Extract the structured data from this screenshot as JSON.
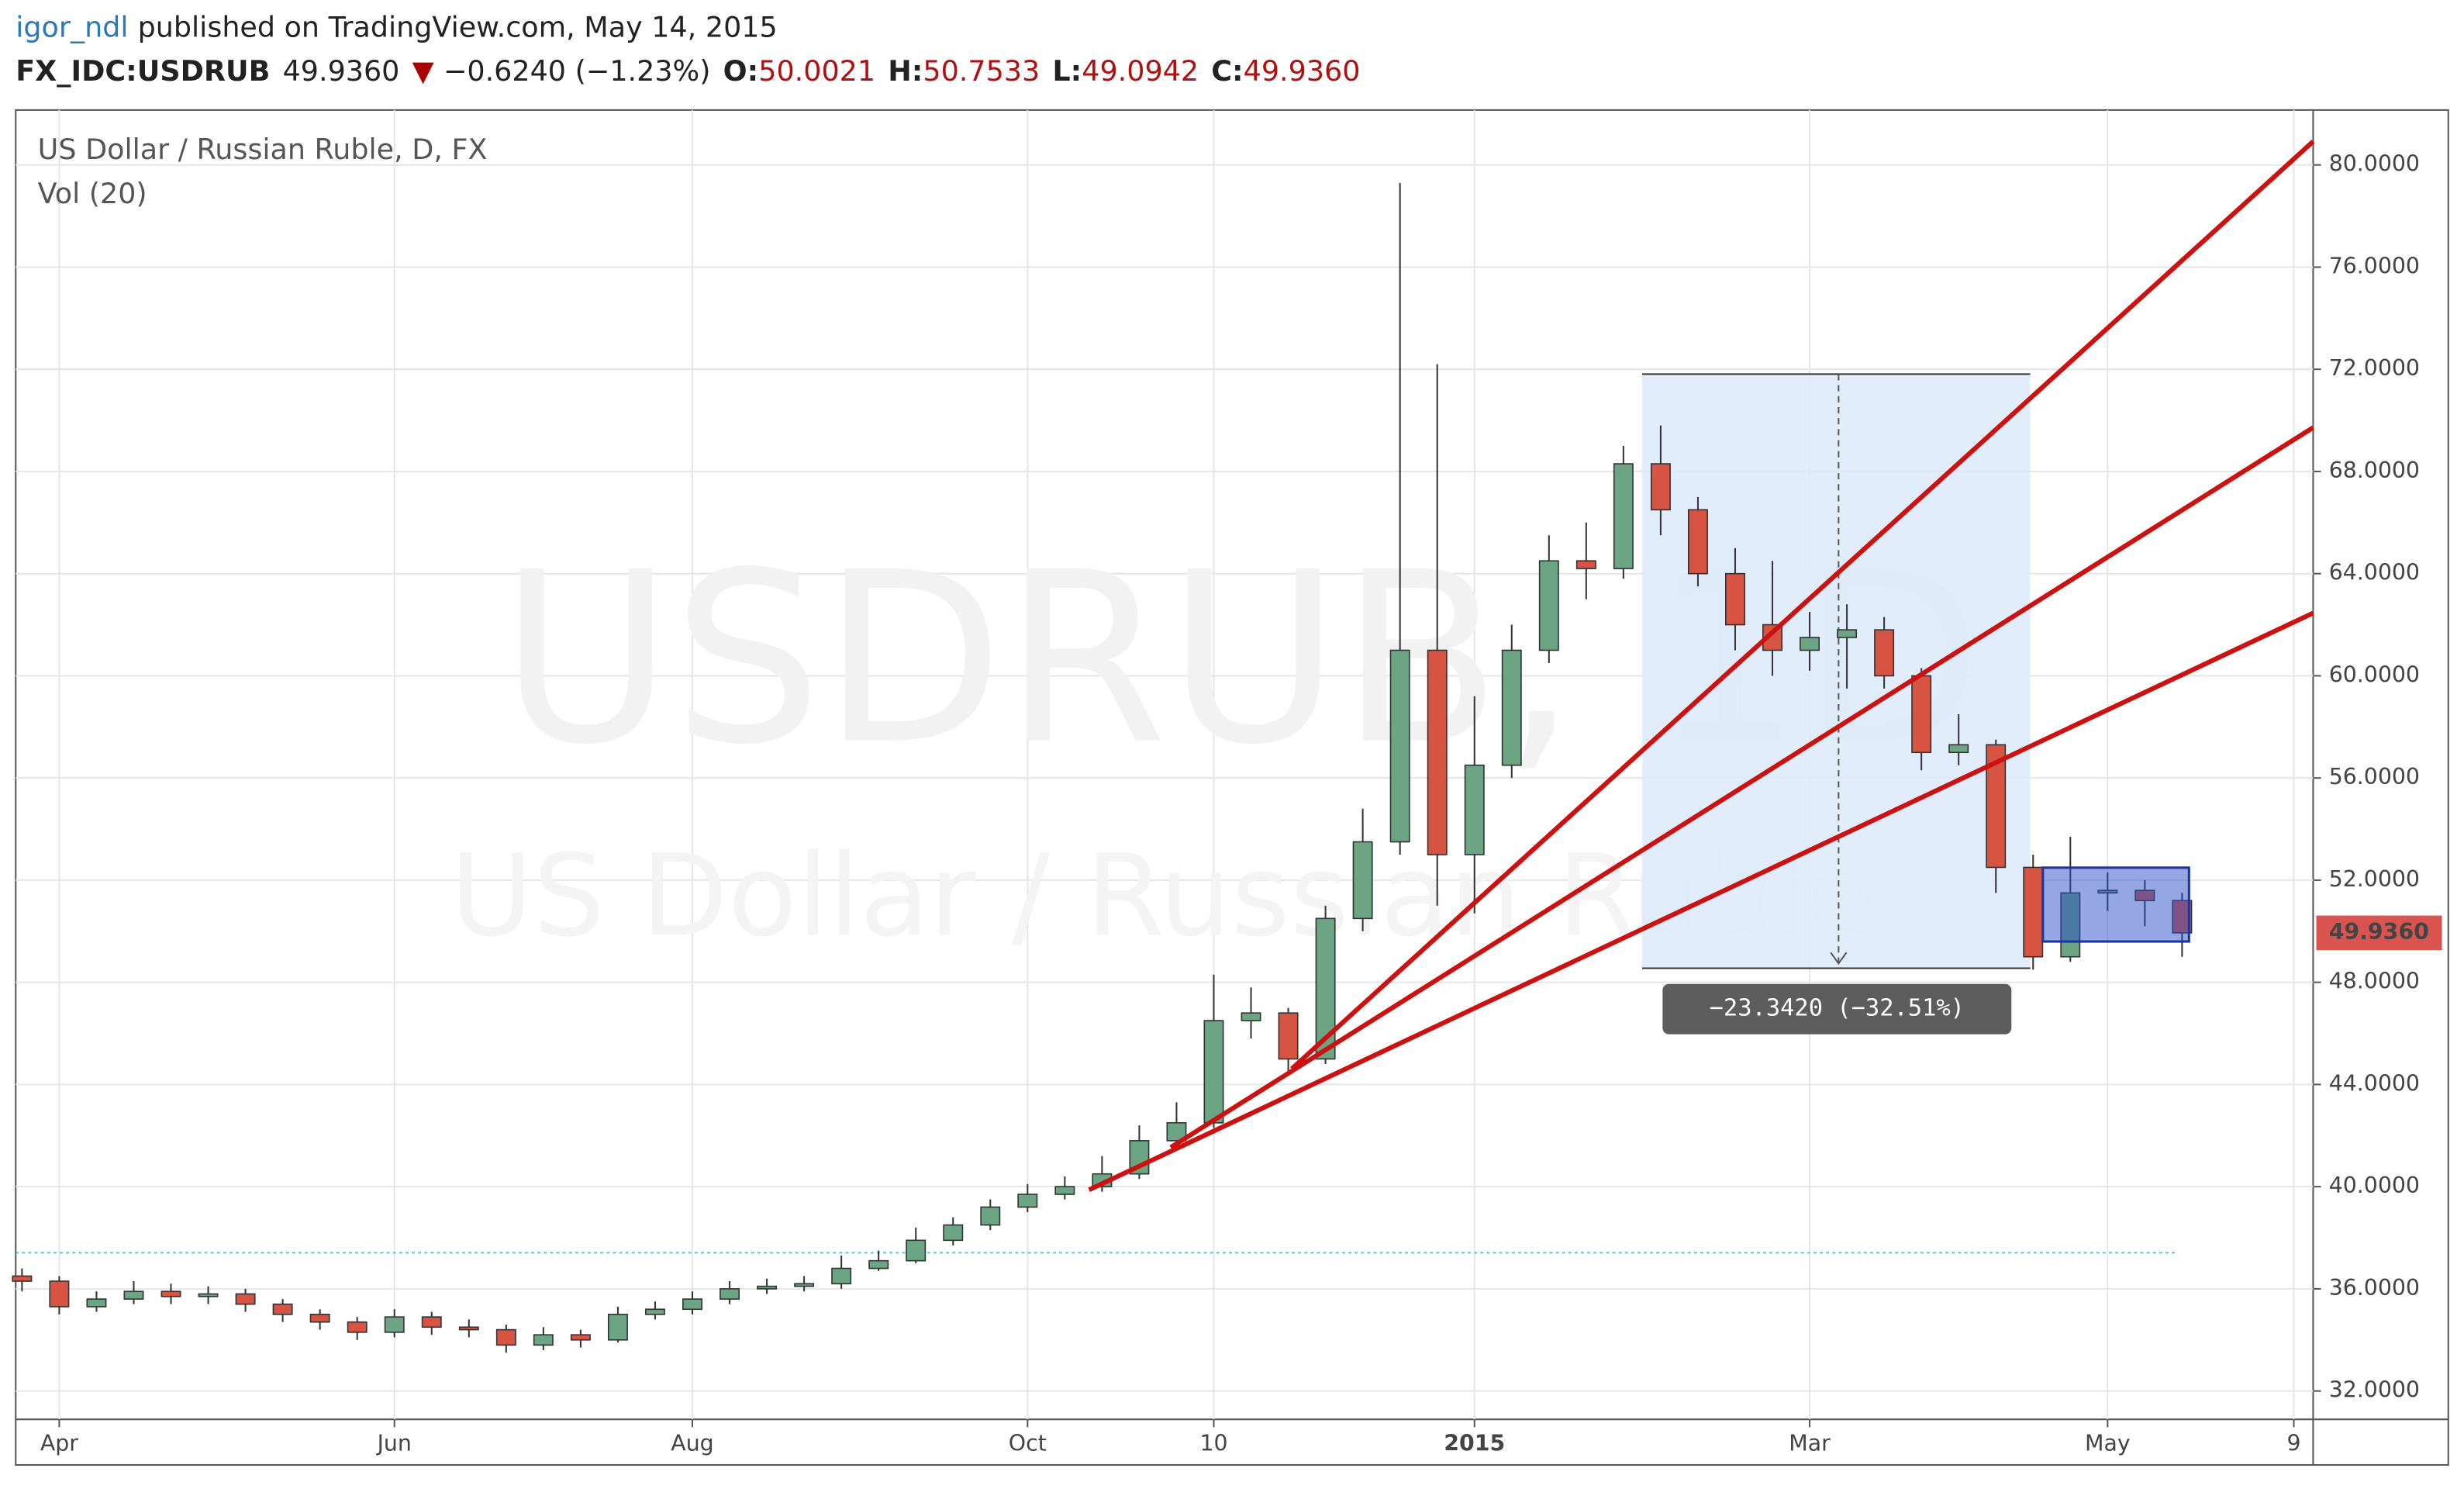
{
  "header": {
    "author": "igor_ndl",
    "published": "published on TradingView.com, May 14, 2015",
    "symbol": "FX_IDC:USDRUB",
    "last": "49.9360",
    "arrow": "▼",
    "change": "−0.6240 (−1.23%)",
    "ohlc": [
      {
        "key": "O:",
        "value": "50.0021"
      },
      {
        "key": "H:",
        "value": "50.7533"
      },
      {
        "key": "L:",
        "value": "49.0942"
      },
      {
        "key": "C:",
        "value": "49.9360"
      }
    ]
  },
  "chart_data": {
    "type": "candlestick",
    "title": "US Dollar / Russian Ruble, D, FX",
    "subtitle": "Vol (20)",
    "watermark": [
      "USDRUB, 1D",
      "US Dollar / Russian Ruble"
    ],
    "categories": [
      null,
      "Apr",
      null,
      null,
      null,
      null,
      null,
      null,
      null,
      null,
      "Jun",
      null,
      null,
      null,
      null,
      null,
      null,
      null,
      "Aug",
      null,
      null,
      null,
      null,
      null,
      null,
      null,
      null,
      "Oct",
      null,
      null,
      null,
      null,
      "10",
      null,
      null,
      null,
      null,
      null,
      null,
      "2015",
      null,
      null,
      null,
      null,
      null,
      null,
      null,
      null,
      "Mar",
      null,
      null,
      null,
      null,
      null,
      null,
      null,
      "May",
      null,
      null,
      null,
      null,
      "9"
    ],
    "open": [
      36.5,
      36.3,
      35.3,
      35.6,
      35.9,
      35.7,
      35.8,
      35.4,
      35.0,
      34.7,
      34.3,
      34.9,
      34.5,
      34.4,
      33.8,
      34.2,
      34.0,
      35.0,
      35.2,
      35.6,
      36.0,
      36.1,
      36.2,
      36.8,
      37.1,
      37.9,
      38.5,
      39.2,
      39.7,
      40.0,
      40.5,
      41.8,
      42.5,
      46.5,
      46.8,
      45.0,
      50.5,
      53.5,
      61.0,
      53.0,
      56.5,
      61.0,
      64.5,
      64.2,
      68.3,
      66.5,
      64.0,
      62.0,
      61.0,
      61.5,
      61.8,
      60.0,
      57.0,
      57.3,
      52.5,
      49.0,
      51.5,
      51.6,
      51.2,
      null,
      null,
      null
    ],
    "high": [
      36.8,
      36.5,
      35.9,
      36.3,
      36.2,
      36.1,
      36.0,
      35.6,
      35.2,
      34.9,
      35.2,
      35.1,
      34.8,
      34.6,
      34.5,
      34.4,
      35.3,
      35.5,
      35.9,
      36.3,
      36.4,
      36.5,
      37.3,
      37.5,
      38.4,
      38.8,
      39.5,
      40.1,
      40.4,
      41.2,
      42.4,
      43.3,
      48.3,
      47.8,
      47.0,
      51.0,
      54.8,
      79.3,
      72.2,
      59.2,
      62.0,
      65.5,
      66.0,
      69.0,
      69.8,
      67.0,
      65.0,
      64.5,
      62.5,
      62.8,
      62.3,
      60.3,
      58.5,
      57.5,
      53.0,
      53.7,
      52.3,
      52.0,
      51.5,
      null,
      null,
      null
    ],
    "low": [
      35.9,
      35.0,
      35.1,
      35.4,
      35.4,
      35.4,
      35.1,
      34.7,
      34.4,
      34.0,
      34.1,
      34.2,
      34.1,
      33.5,
      33.6,
      33.7,
      33.9,
      34.8,
      35.0,
      35.4,
      35.8,
      35.9,
      36.0,
      36.7,
      37.0,
      37.7,
      38.3,
      39.0,
      39.5,
      39.8,
      40.3,
      41.5,
      42.3,
      45.8,
      44.5,
      44.8,
      50.0,
      53.0,
      51.0,
      50.7,
      56.0,
      60.5,
      63.0,
      63.8,
      65.5,
      63.5,
      61.0,
      60.0,
      60.2,
      59.5,
      59.5,
      56.3,
      56.5,
      51.5,
      48.5,
      48.8,
      50.8,
      50.2,
      49.0,
      null,
      null,
      null
    ],
    "close": [
      36.3,
      35.3,
      35.6,
      35.9,
      35.7,
      35.8,
      35.4,
      35.0,
      34.7,
      34.3,
      34.9,
      34.5,
      34.4,
      33.8,
      34.2,
      34.0,
      35.0,
      35.2,
      35.6,
      36.0,
      36.1,
      36.2,
      36.8,
      37.1,
      37.9,
      38.5,
      39.2,
      39.7,
      40.0,
      40.5,
      41.8,
      42.5,
      46.5,
      46.8,
      45.0,
      50.5,
      53.5,
      61.0,
      53.0,
      56.5,
      61.0,
      64.5,
      64.2,
      68.3,
      66.5,
      64.0,
      62.0,
      61.0,
      61.5,
      61.8,
      60.0,
      57.0,
      57.3,
      52.5,
      49.0,
      51.5,
      51.6,
      51.2,
      49.936,
      null,
      null,
      null
    ],
    "up_color": "#6ba583",
    "down_color": "#d75442",
    "ylim": [
      30.89,
      82.15
    ],
    "yticks": [
      {
        "value": 32,
        "label": "32.0000"
      },
      {
        "value": 36,
        "label": "36.0000"
      },
      {
        "value": 40,
        "label": "40.0000"
      },
      {
        "value": 44,
        "label": "44.0000"
      },
      {
        "value": 48,
        "label": "48.0000"
      },
      {
        "value": 52,
        "label": "52.0000"
      },
      {
        "value": 56,
        "label": "56.0000"
      },
      {
        "value": 60,
        "label": "60.0000"
      },
      {
        "value": 64,
        "label": "64.0000"
      },
      {
        "value": 68,
        "label": "68.0000"
      },
      {
        "value": 72,
        "label": "72.0000"
      },
      {
        "value": 76,
        "label": "76.0000"
      },
      {
        "value": 80,
        "label": "80.0000"
      }
    ],
    "grid": true,
    "last_price_label": {
      "value": 49.936,
      "label": "49.9360"
    },
    "measure_label": "−23.3420 (−32.51%)"
  }
}
